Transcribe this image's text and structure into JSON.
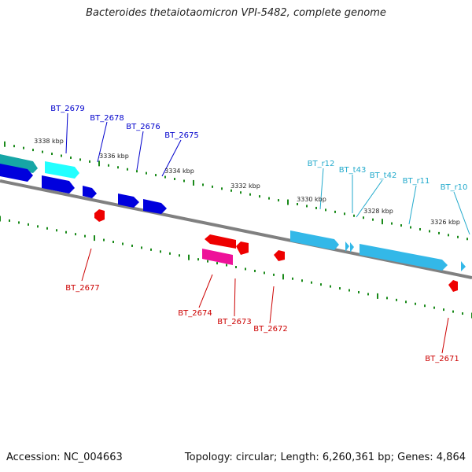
{
  "title": "Bacteroides thetaiotaomicron VPI-5482, complete genome",
  "footer": {
    "accession": "Accession: NC_004663",
    "summary": "Topology: circular; Length: 6,260,361 bp; Genes: 4,864"
  },
  "colors": {
    "backbone": "#808080",
    "forward_gene": "#0000dd",
    "forward_gene_light": "#22ffff",
    "rna": "#33b8e8",
    "reverse_gene": "#ee0000",
    "reverse_gene_pink": "#ee1199",
    "tick": "#1a8a1a",
    "label_forward": "#0000cc",
    "label_rna": "#22aacc",
    "label_reverse": "#cc0000"
  },
  "scale_labels": [
    "3338 kbp",
    "3336 kbp",
    "3334 kbp",
    "3332 kbp",
    "3330 kbp",
    "3328 kbp",
    "3326 kbp"
  ],
  "features_forward": [
    "BT_2679",
    "BT_2678",
    "BT_2676",
    "BT_2675"
  ],
  "features_rna": [
    "BT_r12",
    "BT_t43",
    "BT_t42",
    "BT_r11",
    "BT_r10"
  ],
  "features_reverse": [
    "BT_2677",
    "BT_2674",
    "BT_2673",
    "BT_2672",
    "BT_2671"
  ]
}
